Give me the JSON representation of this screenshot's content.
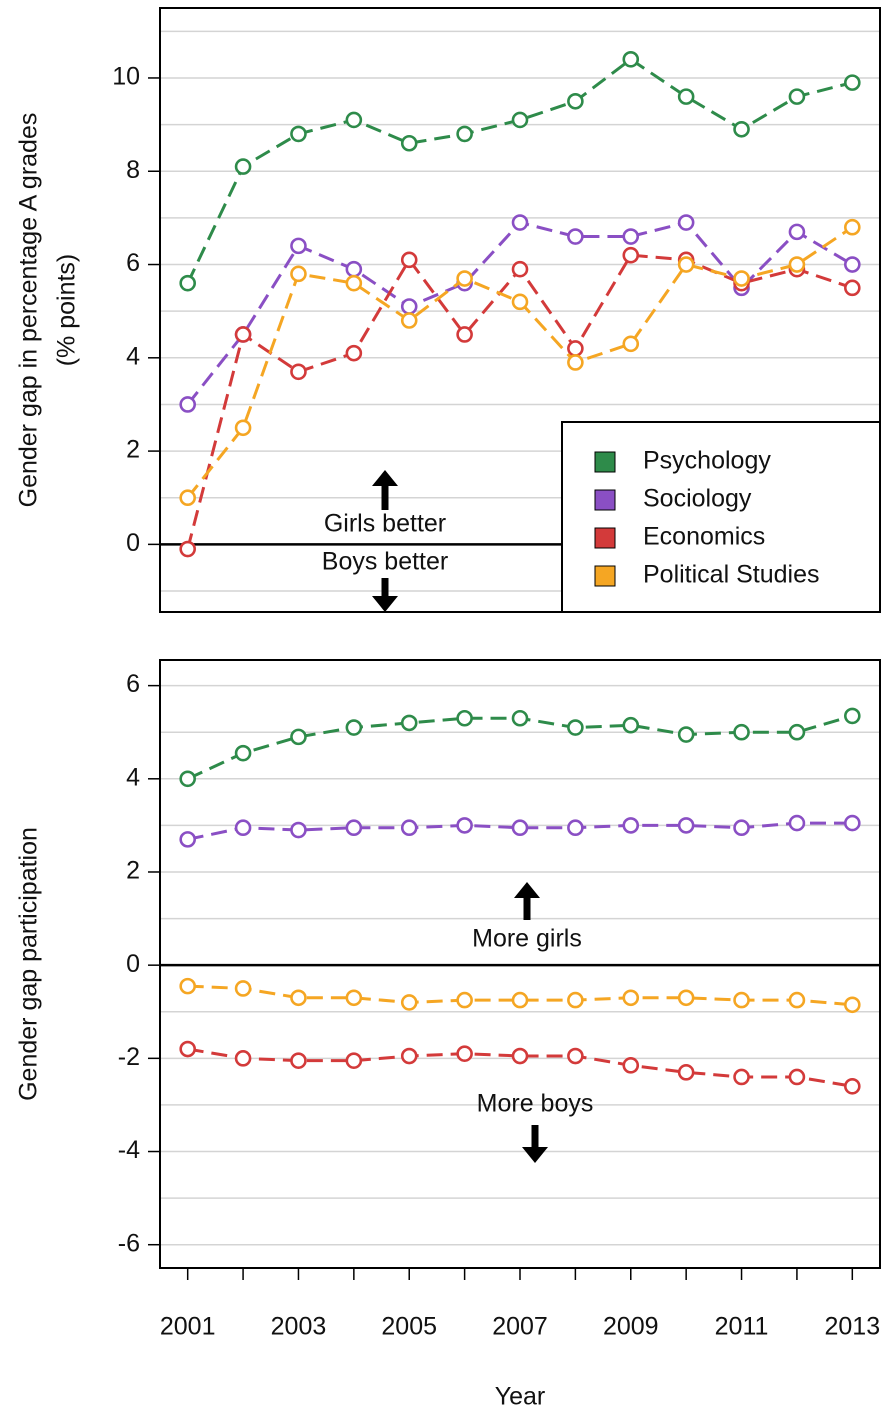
{
  "chart_data": [
    {
      "type": "line",
      "y_label": [
        "Gender gap in percentage A grades",
        "(% points)"
      ],
      "annotations": [
        "Girls better",
        "Boys better"
      ],
      "x": [
        2001,
        2002,
        2003,
        2004,
        2005,
        2006,
        2007,
        2008,
        2009,
        2010,
        2011,
        2012,
        2013
      ],
      "xlim": [
        2000.5,
        2013.5
      ],
      "ylim": [
        -1.45,
        11.5
      ],
      "yticks": [
        0,
        2,
        4,
        6,
        8,
        10
      ],
      "y_minor_ticks": [
        -1,
        1,
        3,
        5,
        7,
        9,
        11
      ],
      "grid": true,
      "legend": "bottom-right",
      "series": [
        {
          "name": "Psychology",
          "color": "#2e8b4a",
          "values": [
            5.6,
            8.1,
            8.8,
            9.1,
            8.6,
            8.8,
            9.1,
            9.5,
            10.4,
            9.6,
            8.9,
            9.6,
            9.9
          ]
        },
        {
          "name": "Sociology",
          "color": "#8a4fc4",
          "values": [
            3.0,
            4.5,
            6.4,
            5.9,
            5.1,
            5.6,
            6.9,
            6.6,
            6.6,
            6.9,
            5.5,
            6.7,
            6.0
          ]
        },
        {
          "name": "Economics",
          "color": "#d33a3a",
          "values": [
            -0.1,
            4.5,
            3.7,
            4.1,
            6.1,
            4.5,
            5.9,
            4.2,
            6.2,
            6.1,
            5.6,
            5.9,
            5.5
          ]
        },
        {
          "name": "Political Studies",
          "color": "#f5a623",
          "values": [
            1.0,
            2.5,
            5.8,
            5.6,
            4.8,
            5.7,
            5.2,
            3.9,
            4.3,
            6.0,
            5.7,
            6.0,
            6.8
          ]
        }
      ]
    },
    {
      "type": "line",
      "y_label": [
        "Gender gap participation"
      ],
      "x_label": "Year",
      "annotations": [
        "More girls",
        "More boys"
      ],
      "x": [
        2001,
        2002,
        2003,
        2004,
        2005,
        2006,
        2007,
        2008,
        2009,
        2010,
        2011,
        2012,
        2013
      ],
      "xlim": [
        2000.5,
        2013.5
      ],
      "xticks": [
        2001,
        2003,
        2005,
        2007,
        2009,
        2011,
        2013
      ],
      "x_minor_ticks": [
        2002,
        2004,
        2006,
        2008,
        2010,
        2012
      ],
      "ylim": [
        -6.5,
        6.55
      ],
      "yticks": [
        -6,
        -4,
        -2,
        0,
        2,
        4,
        6
      ],
      "y_minor_ticks": [
        -5,
        -3,
        -1,
        1,
        3,
        5
      ],
      "grid": true,
      "series": [
        {
          "name": "Psychology",
          "color": "#2e8b4a",
          "values": [
            4.0,
            4.55,
            4.9,
            5.1,
            5.2,
            5.3,
            5.3,
            5.1,
            5.15,
            4.95,
            5.0,
            5.0,
            5.35
          ]
        },
        {
          "name": "Sociology",
          "color": "#8a4fc4",
          "values": [
            2.7,
            2.95,
            2.9,
            2.95,
            2.95,
            3.0,
            2.95,
            2.95,
            3.0,
            3.0,
            2.95,
            3.05,
            3.05
          ]
        },
        {
          "name": "Economics",
          "color": "#d33a3a",
          "values": [
            -1.8,
            -2.0,
            -2.05,
            -2.05,
            -1.95,
            -1.9,
            -1.95,
            -1.95,
            -2.15,
            -2.3,
            -2.4,
            -2.4,
            -2.6
          ]
        },
        {
          "name": "Political Studies",
          "color": "#f5a623",
          "values": [
            -0.45,
            -0.5,
            -0.7,
            -0.7,
            -0.8,
            -0.75,
            -0.75,
            -0.75,
            -0.7,
            -0.7,
            -0.75,
            -0.75,
            -0.85
          ]
        }
      ]
    }
  ]
}
